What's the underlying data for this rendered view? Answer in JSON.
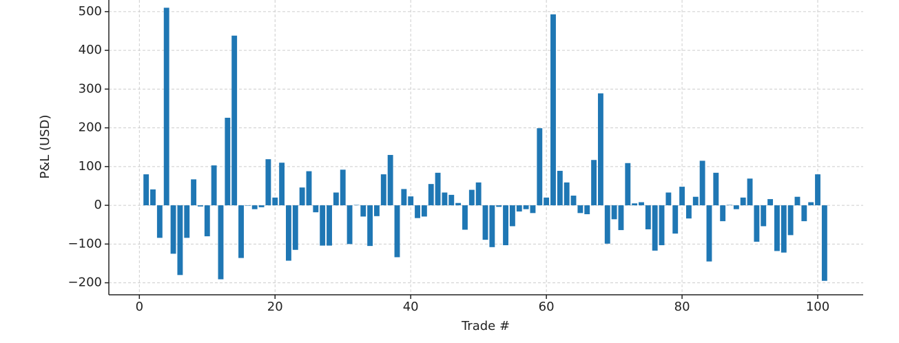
{
  "chart_data": {
    "type": "bar",
    "xlabel": "Trade #",
    "ylabel": "P&L (USD)",
    "x": [
      1,
      2,
      3,
      4,
      5,
      6,
      7,
      8,
      9,
      10,
      11,
      12,
      13,
      14,
      15,
      16,
      17,
      18,
      19,
      20,
      21,
      22,
      23,
      24,
      25,
      26,
      27,
      28,
      29,
      30,
      31,
      32,
      33,
      34,
      35,
      36,
      37,
      38,
      39,
      40,
      41,
      42,
      43,
      44,
      45,
      46,
      47,
      48,
      49,
      50,
      51,
      52,
      53,
      54,
      55,
      56,
      57,
      58,
      59,
      60,
      61,
      62,
      63,
      64,
      65,
      66,
      67,
      68,
      69,
      70,
      71,
      72,
      73,
      74,
      75,
      76,
      77,
      78,
      79,
      80,
      81,
      82,
      83,
      84,
      85,
      86,
      87,
      88,
      89,
      90,
      91,
      92,
      93,
      94,
      95,
      96,
      97,
      98,
      99,
      100,
      101
    ],
    "values": [
      80,
      41,
      -84,
      510,
      -125,
      -180,
      -84,
      67,
      -3,
      -80,
      103,
      -191,
      226,
      438,
      -136,
      -1,
      -10,
      -5,
      119,
      20,
      110,
      -143,
      -115,
      46,
      88,
      -18,
      -104,
      -104,
      33,
      92,
      -100,
      1,
      -29,
      -105,
      -28,
      80,
      130,
      -134,
      42,
      23,
      -33,
      -29,
      55,
      84,
      33,
      27,
      6,
      -63,
      40,
      59,
      -89,
      -108,
      -4,
      -103,
      -54,
      -16,
      -10,
      -20,
      199,
      20,
      493,
      89,
      59,
      25,
      -20,
      -23,
      117,
      289,
      -99,
      -36,
      -64,
      109,
      5,
      8,
      -62,
      -117,
      -103,
      33,
      -73,
      48,
      -34,
      22,
      115,
      -145,
      84,
      -41,
      1,
      -10,
      20,
      69,
      -94,
      -54,
      16,
      -118,
      -122,
      -77,
      22,
      -41,
      8,
      80,
      -195
    ],
    "color": "#1f77b4",
    "xlim": [
      -4.5,
      106.7
    ],
    "ylim": [
      -231,
      530
    ],
    "xticks": [
      0,
      20,
      40,
      60,
      80,
      100
    ],
    "yticks": [
      {
        "value": -200,
        "label": "−200"
      },
      {
        "value": -100,
        "label": "−100"
      },
      0,
      100,
      200,
      300,
      400,
      500
    ],
    "grid": true
  }
}
